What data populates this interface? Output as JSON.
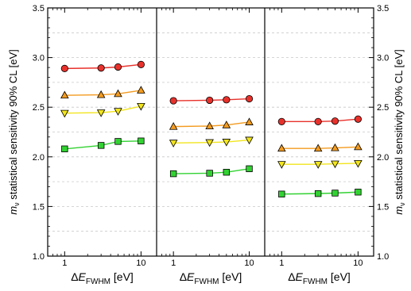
{
  "chart_data": {
    "type": "scatter",
    "y_axis": {
      "label_symbol": "m",
      "label_symbol_sub": "ν",
      "label_text": " statistical sensitivity 90% CL [eV]",
      "range": [
        1.0,
        3.5
      ],
      "ticks": [
        "1.0",
        "1.5",
        "2.0",
        "2.5",
        "3.0",
        "3.5"
      ],
      "tick_values": [
        1.0,
        1.5,
        2.0,
        2.5,
        3.0,
        3.5
      ],
      "grid_dashed_values": [
        1.25,
        1.75,
        2.25,
        2.75,
        3.25
      ],
      "scale": "linear",
      "shown_left_and_right": true
    },
    "x_axis": {
      "label_prefix": "ΔE",
      "label_sub": "FWHM",
      "label_suffix": " [eV]",
      "scale": "log",
      "range": [
        0.6,
        16
      ],
      "ticks": [
        "1",
        "10"
      ],
      "tick_values": [
        1,
        10
      ]
    },
    "grid": "dashed horizontal",
    "panels": [
      {
        "x": [
          1,
          3,
          5,
          10
        ],
        "series": [
          {
            "marker": "circle",
            "color": "#e8312b",
            "values": [
              2.89,
              2.895,
              2.905,
              2.93
            ]
          },
          {
            "marker": "triangle-up",
            "color": "#f39b1f",
            "values": [
              2.62,
              2.625,
              2.635,
              2.67
            ]
          },
          {
            "marker": "triangle-down",
            "color": "#f2e51d",
            "values": [
              2.44,
              2.445,
              2.46,
              2.51
            ]
          },
          {
            "marker": "square",
            "color": "#32d232",
            "values": [
              2.08,
              2.115,
              2.155,
              2.16
            ]
          }
        ]
      },
      {
        "x": [
          1,
          3,
          5,
          10
        ],
        "series": [
          {
            "marker": "circle",
            "color": "#e8312b",
            "values": [
              2.565,
              2.57,
              2.575,
              2.585
            ]
          },
          {
            "marker": "triangle-up",
            "color": "#f39b1f",
            "values": [
              2.305,
              2.31,
              2.32,
              2.35
            ]
          },
          {
            "marker": "triangle-down",
            "color": "#f2e51d",
            "values": [
              2.14,
              2.145,
              2.15,
              2.17
            ]
          },
          {
            "marker": "square",
            "color": "#32d232",
            "values": [
              1.83,
              1.835,
              1.845,
              1.88
            ]
          }
        ]
      },
      {
        "x": [
          1,
          3,
          5,
          10
        ],
        "series": [
          {
            "marker": "circle",
            "color": "#e8312b",
            "values": [
              2.355,
              2.355,
              2.36,
              2.38
            ]
          },
          {
            "marker": "triangle-up",
            "color": "#f39b1f",
            "values": [
              2.085,
              2.085,
              2.09,
              2.1
            ]
          },
          {
            "marker": "triangle-down",
            "color": "#f2e51d",
            "values": [
              1.925,
              1.925,
              1.93,
              1.935
            ]
          },
          {
            "marker": "square",
            "color": "#32d232",
            "values": [
              1.625,
              1.63,
              1.635,
              1.645
            ]
          }
        ]
      }
    ]
  }
}
